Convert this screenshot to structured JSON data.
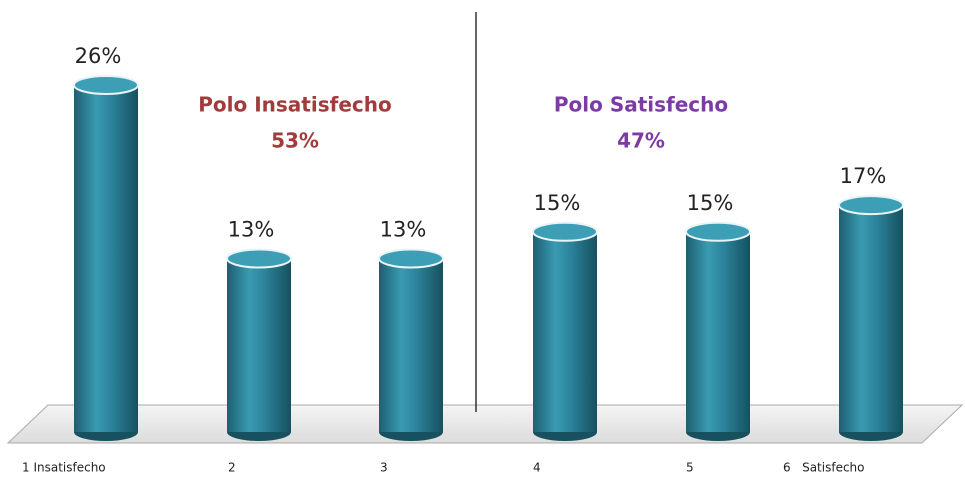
{
  "chart_data": {
    "type": "bar",
    "categories": [
      "1 Insatisfecho",
      "2",
      "3",
      "4",
      "5",
      "6   Satisfecho"
    ],
    "values": [
      26,
      13,
      13,
      15,
      15,
      17
    ],
    "value_labels": [
      "26%",
      "13%",
      "13%",
      "15%",
      "15%",
      "17%"
    ],
    "color": "#2a7f95",
    "annotations": [
      {
        "text": "Polo Insatisfecho",
        "value": "53%",
        "color": "#a23b3b"
      },
      {
        "text": "Polo Satisfecho",
        "value": "47%",
        "color": "#7b3aa6"
      }
    ]
  }
}
